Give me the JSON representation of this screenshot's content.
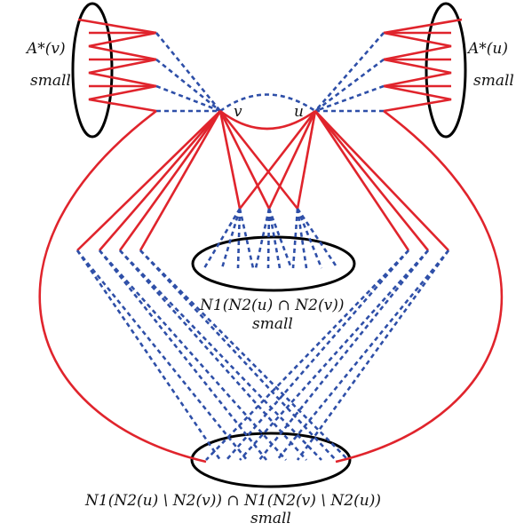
{
  "labels": {
    "a_star_v": "A*(v)",
    "a_star_u": "A*(u)",
    "small": "small",
    "vertex_v": "v",
    "vertex_u": "u",
    "common_neighbourhood": "N1(N2(u) ∩ N2(v))",
    "difference_intersection": "N1(N2(u) \\ N2(v)) ∩ N1(N2(v) \\ N2(u))"
  },
  "colors": {
    "edge_solid": "#e0242c",
    "edge_dashed": "#2e4fa8",
    "set_outline": "#000000"
  }
}
